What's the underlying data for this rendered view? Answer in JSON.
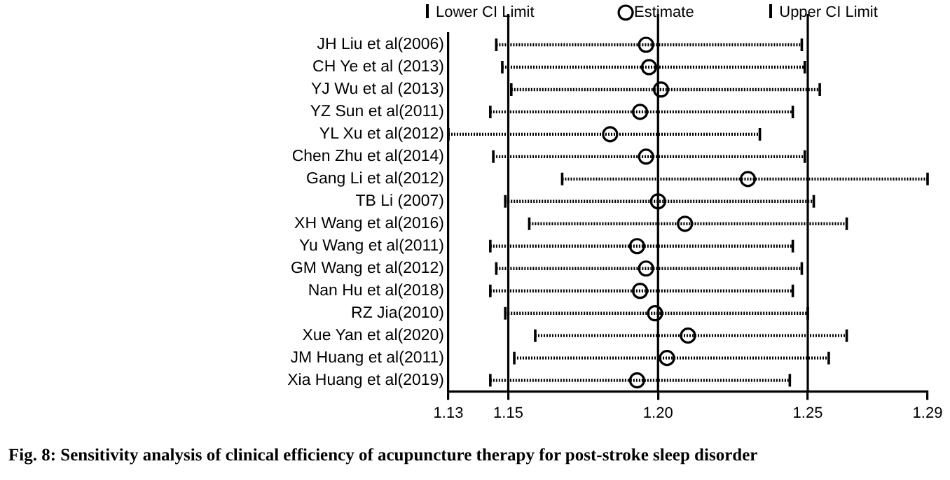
{
  "chart_data": {
    "type": "scatter",
    "orientation": "horizontal",
    "categories": [
      "JH Liu et al(2006)",
      "CH Ye et al (2013)",
      "YJ Wu et al (2013)",
      "YZ Sun et al(2011)",
      "YL Xu et al(2012)",
      "Chen Zhu et al(2014)",
      "Gang Li et al(2012)",
      "TB Li (2007)",
      "XH Wang et al(2016)",
      "Yu Wang et al(2011)",
      "GM Wang et al(2012)",
      "Nan Hu et al(2018)",
      "RZ Jia(2010)",
      "Xue Yan et al(2020)",
      "JM Huang et al(2011)",
      "Xia Huang et al(2019)"
    ],
    "series": [
      {
        "name": "Estimate",
        "color": "#000000",
        "values": [
          1.196,
          1.197,
          1.201,
          1.194,
          1.184,
          1.196,
          1.23,
          1.2,
          1.209,
          1.193,
          1.196,
          1.194,
          1.199,
          1.21,
          1.203,
          1.193
        ],
        "errors": [
          [
            1.146,
            1.248
          ],
          [
            1.148,
            1.249
          ],
          [
            1.151,
            1.254
          ],
          [
            1.144,
            1.245
          ],
          [
            1.13,
            1.234
          ],
          [
            1.145,
            1.249
          ],
          [
            1.168,
            1.29
          ],
          [
            1.149,
            1.252
          ],
          [
            1.157,
            1.263
          ],
          [
            1.144,
            1.245
          ],
          [
            1.146,
            1.248
          ],
          [
            1.144,
            1.245
          ],
          [
            1.149,
            1.25
          ],
          [
            1.159,
            1.263
          ],
          [
            1.152,
            1.257
          ],
          [
            1.144,
            1.244
          ]
        ]
      }
    ],
    "marker": "circle",
    "xlim": [
      1.13,
      1.29
    ],
    "xticks": [
      1.13,
      1.15,
      {
        "value": 1.2,
        "label": "1.20"
      },
      1.25,
      1.29
    ],
    "ref_lines": [
      {
        "axis": "x",
        "value": 1.15,
        "color": "#000000"
      },
      {
        "axis": "x",
        "value": 1.2,
        "color": "#000000"
      },
      {
        "axis": "x",
        "value": 1.25,
        "color": "#000000"
      }
    ],
    "grid": false,
    "legend": "top",
    "annotations": [
      "Lower CI Limit",
      "Upper CI Limit",
      "Fig. 8: Sensitivity analysis of clinical efficiency of acupuncture therapy for post-stroke sleep disorder"
    ]
  }
}
